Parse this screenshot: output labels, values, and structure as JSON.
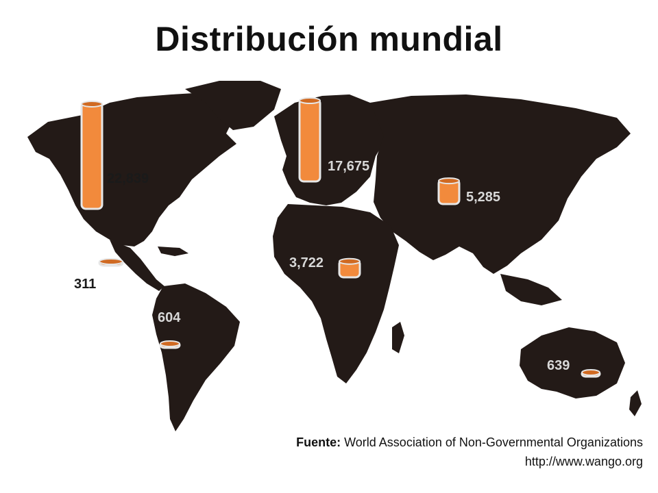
{
  "title": "Distribución mundial",
  "source": {
    "label": "Fuente:",
    "text": "World Association of Non-Governmental Organizations",
    "url": "http://www.wango.org"
  },
  "colors": {
    "land": "#231a17",
    "cylinder": "#f28a3c",
    "cylinder_edge": "#d06a22"
  },
  "regions": [
    {
      "id": "north-america",
      "value_label": "22,839",
      "value": 22839
    },
    {
      "id": "europe",
      "value_label": "17,675",
      "value": 17675
    },
    {
      "id": "asia",
      "value_label": "5,285",
      "value": 5285
    },
    {
      "id": "africa",
      "value_label": "3,722",
      "value": 3722
    },
    {
      "id": "central-america",
      "value_label": "311",
      "value": 311
    },
    {
      "id": "south-america",
      "value_label": "604",
      "value": 604
    },
    {
      "id": "oceania",
      "value_label": "639",
      "value": 639
    }
  ]
}
